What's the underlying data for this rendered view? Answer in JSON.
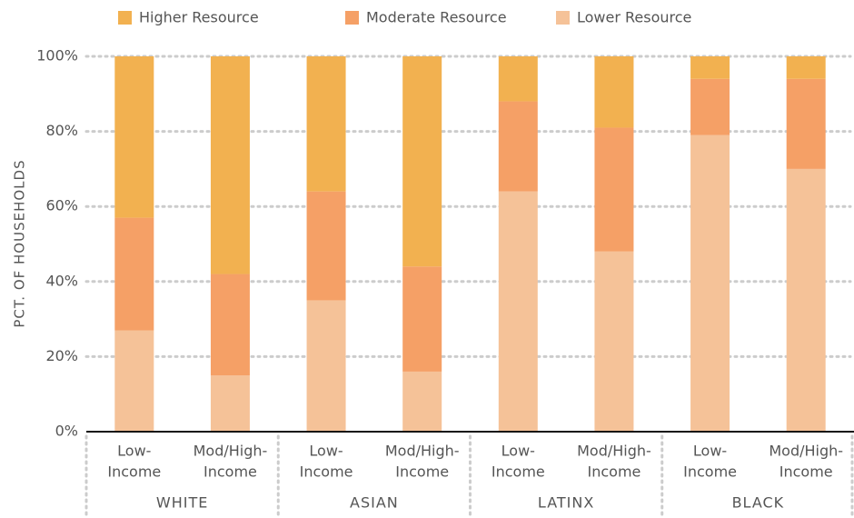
{
  "chart_data": {
    "type": "stacked_bar",
    "ylabel": "PCT. OF HOUSEHOLDS",
    "groups": [
      {
        "name": "WHITE",
        "span": 2
      },
      {
        "name": "ASIAN",
        "span": 2
      },
      {
        "name": "LATINX",
        "span": 2
      },
      {
        "name": "BLACK",
        "span": 2
      }
    ],
    "categories": [
      [
        "Low-",
        "Income"
      ],
      [
        "Mod/High-",
        "Income"
      ],
      [
        "Low-",
        "Income"
      ],
      [
        "Mod/High-",
        "Income"
      ],
      [
        "Low-",
        "Income"
      ],
      [
        "Mod/High-",
        "Income"
      ],
      [
        "Low-",
        "Income"
      ],
      [
        "Mod/High-",
        "Income"
      ]
    ],
    "series": [
      {
        "name": "Lower Resource",
        "color": "#f5c298",
        "values": [
          27,
          15,
          35,
          16,
          64,
          48,
          79,
          70
        ]
      },
      {
        "name": "Moderate Resource",
        "color": "#f5a066",
        "values": [
          30,
          27,
          29,
          28,
          24,
          33,
          15,
          24
        ]
      },
      {
        "name": "Higher Resource",
        "color": "#f2b150",
        "values": [
          43,
          58,
          36,
          56,
          12,
          19,
          6,
          6
        ]
      }
    ],
    "ylim": [
      0,
      100
    ],
    "yticks": [
      {
        "value": 0,
        "label": "0%"
      },
      {
        "value": 20,
        "label": "20%"
      },
      {
        "value": 40,
        "label": "40%"
      },
      {
        "value": 60,
        "label": "60%"
      },
      {
        "value": 80,
        "label": "80%"
      },
      {
        "value": 100,
        "label": "100%"
      }
    ],
    "grid": true
  }
}
